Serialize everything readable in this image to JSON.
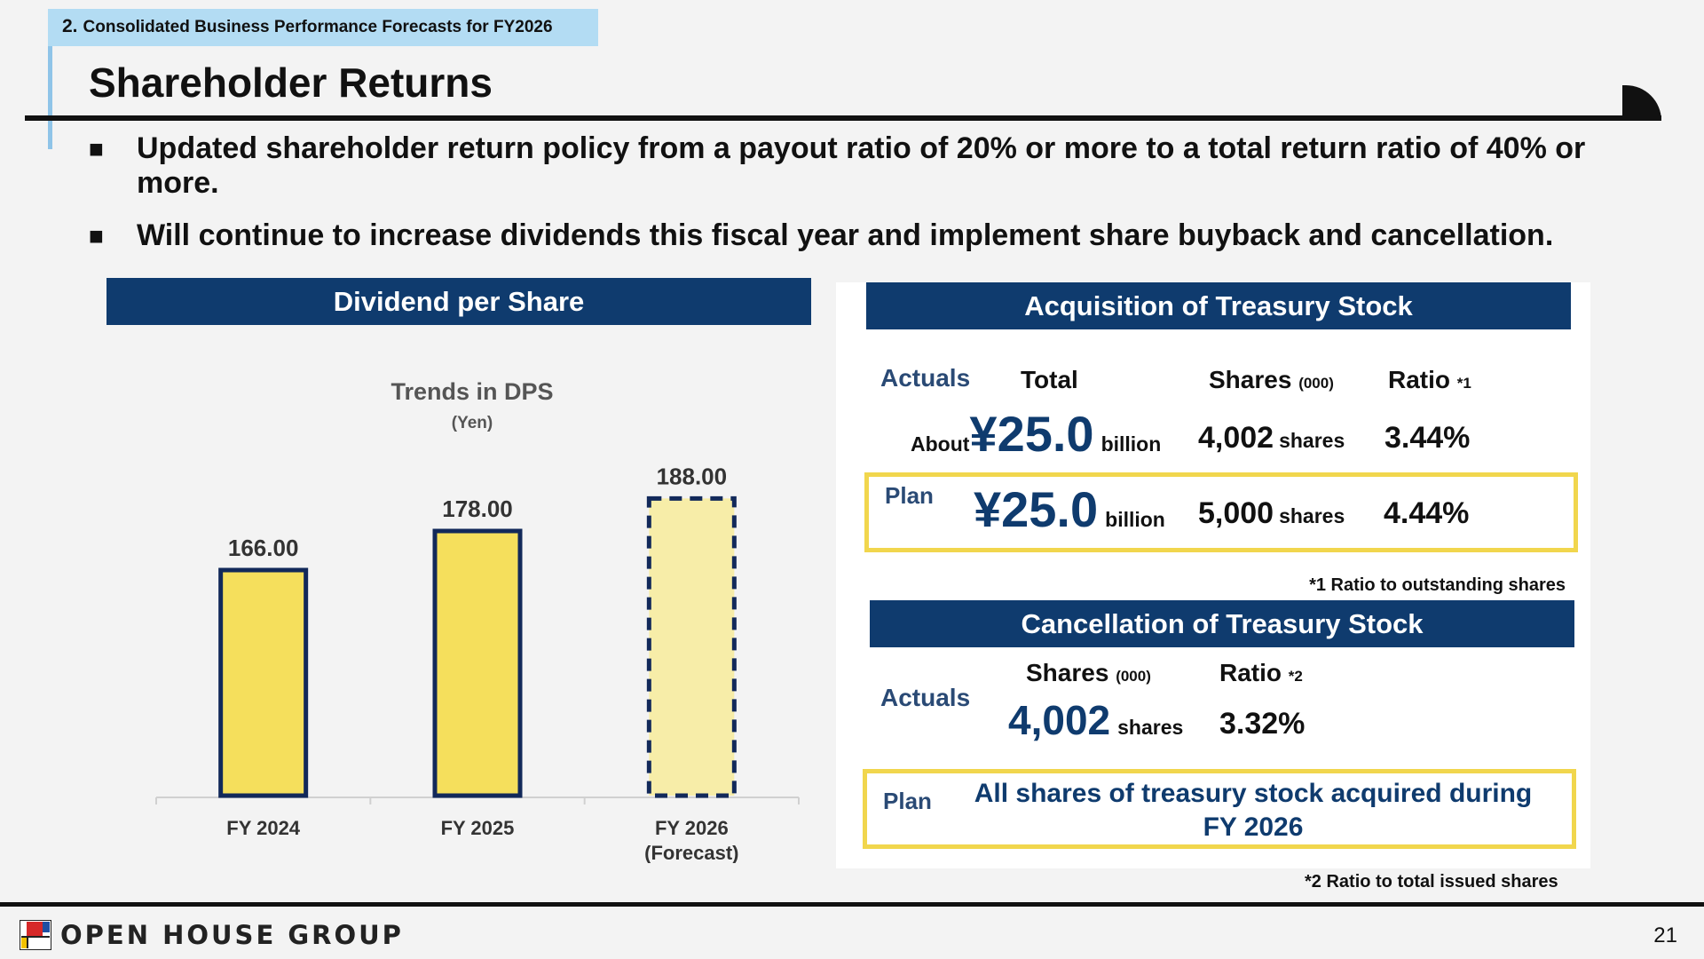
{
  "header": {
    "section_num": "2.",
    "section_title": "Consolidated Business Performance Forecasts for FY2026",
    "title": "Shareholder Returns"
  },
  "bullets": [
    "Updated shareholder return policy from a payout ratio of 20% or more to a total return ratio of 40% or more.",
    "Will continue to increase dividends this fiscal year and implement share buyback and cancellation."
  ],
  "bullet_mark": "■",
  "dps_panel": {
    "header": "Dividend per Share"
  },
  "chart_data": {
    "type": "bar",
    "title": "Trends in DPS",
    "subtitle": "(Yen)",
    "categories": [
      "FY 2024",
      "FY 2025",
      "FY 2026"
    ],
    "category_sublabels": [
      "",
      "",
      "(Forecast)"
    ],
    "values": [
      166.0,
      178.0,
      188.0
    ],
    "value_labels": [
      "166.00",
      "178.00",
      "188.00"
    ],
    "forecast_index": 2,
    "ylim": [
      100,
      190
    ],
    "colors": {
      "bar": "#f5df5c",
      "forecast_bar": "#f7eda8",
      "outline": "#12295a",
      "axis": "#d0d0d0",
      "title": "#555555",
      "label": "#333333"
    }
  },
  "acquisition": {
    "header": "Acquisition of Treasury Stock",
    "actuals_label": "Actuals",
    "col_total": "Total",
    "col_shares": "Shares",
    "col_shares_unit": "(000)",
    "col_ratio": "Ratio",
    "col_ratio_note": "*1",
    "actual_prefix": "About",
    "actual_amount": "¥25.0",
    "actual_amount_unit": "billion",
    "actual_shares": "4,002",
    "actual_shares_unit": "shares",
    "actual_ratio": "3.44%",
    "plan_label": "Plan",
    "plan_amount": "¥25.0",
    "plan_amount_unit": "billion",
    "plan_shares": "5,000",
    "plan_shares_unit": "shares",
    "plan_ratio": "4.44%",
    "footnote_mark": "*1",
    "footnote": "Ratio to outstanding shares"
  },
  "cancellation": {
    "header": "Cancellation of Treasury Stock",
    "actuals_label": "Actuals",
    "col_shares": "Shares",
    "col_shares_unit": "(000)",
    "col_ratio": "Ratio",
    "col_ratio_note": "*2",
    "actual_shares": "4,002",
    "actual_shares_unit": "shares",
    "actual_ratio": "3.32%",
    "plan_label": "Plan",
    "plan_text_line1": "All shares of treasury stock acquired during",
    "plan_text_line2": "FY 2026",
    "footnote_mark": "*2",
    "footnote": "Ratio to total issued shares"
  },
  "footer": {
    "logo_text": "OPEN HOUSE GROUP",
    "page_number": "21"
  },
  "colors": {
    "navy": "#0f3b6e",
    "tag_blue": "#b3dcf3",
    "plan_border": "#f1d64d"
  }
}
